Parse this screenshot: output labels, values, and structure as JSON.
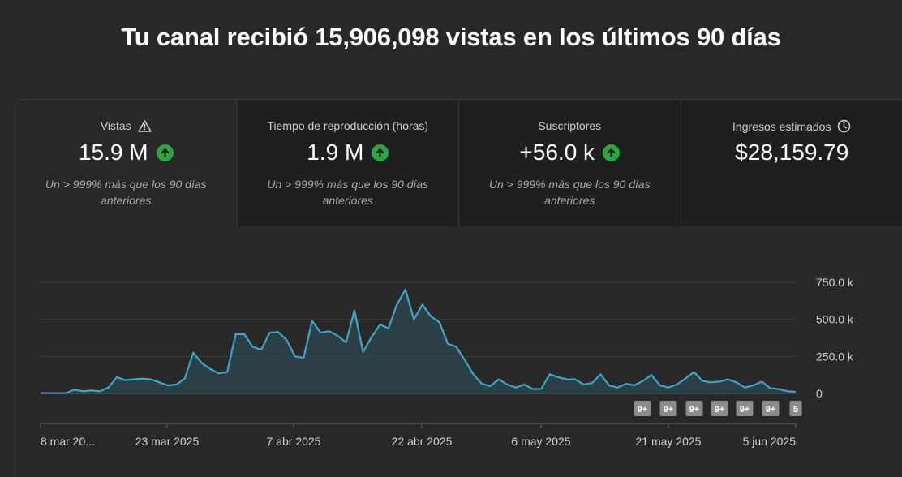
{
  "headline": "Tu canal recibió 15,906,098 vistas en los últimos 90 días",
  "metrics": [
    {
      "label": "Vistas",
      "value": "15.9 M",
      "note": "Un > 999% más que los 90 días anteriores",
      "icon": "warning-icon"
    },
    {
      "label": "Tiempo de reproducción (horas)",
      "value": "1.9 M",
      "note": "Un > 999% más que los 90 días anteriores"
    },
    {
      "label": "Suscriptores",
      "value": "+56.0 k",
      "note": "Un > 999% más que los 90 días anteriores"
    },
    {
      "label": "Ingresos estimados",
      "value": "$28,159.79",
      "icon": "clock-icon"
    }
  ],
  "colors": {
    "line": "#3ea6c8",
    "up": "#2ba640",
    "background": "#282828"
  },
  "chart_data": {
    "type": "area",
    "ylim": [
      0,
      750000
    ],
    "yticks": [
      0,
      250000,
      500000,
      750000
    ],
    "ytick_labels": [
      "0",
      "250.0 k",
      "500.0 k",
      "750.0 k"
    ],
    "x_labels": [
      "8 mar 20...",
      "23 mar 2025",
      "7 abr 2025",
      "22 abr 2025",
      "6 may 2025",
      "21 may 2025",
      "5 jun 2025"
    ],
    "x_label_index": [
      0,
      15,
      30,
      45,
      60,
      75,
      89
    ],
    "values": [
      3000,
      2000,
      2000,
      3000,
      25000,
      15000,
      20000,
      15000,
      40000,
      110000,
      90000,
      95000,
      100000,
      95000,
      75000,
      55000,
      60000,
      100000,
      275000,
      205000,
      165000,
      135000,
      145000,
      400000,
      400000,
      315000,
      295000,
      410000,
      415000,
      360000,
      250000,
      240000,
      490000,
      410000,
      420000,
      390000,
      345000,
      560000,
      280000,
      380000,
      465000,
      440000,
      600000,
      700000,
      500000,
      600000,
      520000,
      480000,
      335000,
      315000,
      225000,
      130000,
      65000,
      50000,
      95000,
      60000,
      40000,
      60000,
      30000,
      30000,
      130000,
      110000,
      95000,
      95000,
      60000,
      70000,
      130000,
      55000,
      40000,
      65000,
      55000,
      85000,
      125000,
      55000,
      40000,
      60000,
      100000,
      145000,
      85000,
      75000,
      80000,
      95000,
      75000,
      40000,
      55000,
      80000,
      35000,
      30000,
      15000,
      12000
    ],
    "annotations": [
      "9+",
      "9+",
      "9+",
      "9+",
      "9+",
      "9+",
      "5"
    ]
  }
}
